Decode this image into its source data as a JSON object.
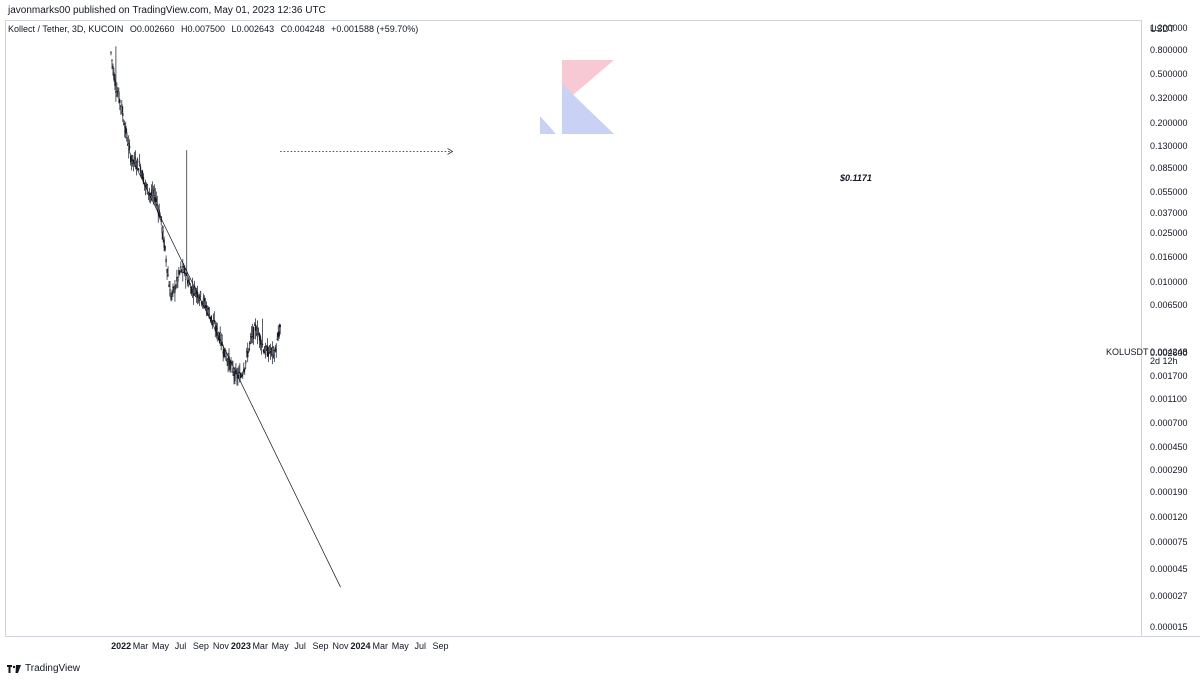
{
  "header": {
    "published": "javonmarks00 published on TradingView.com, May 01, 2023 12:36 UTC",
    "symbol": "Kollect / Tether, 3D, KUCOIN",
    "open": "O0.002660",
    "high": "H0.007500",
    "low": "L0.002643",
    "close": "C0.004248",
    "change": "+0.001588 (+59.70%)"
  },
  "price_axis": {
    "currency": "USDT",
    "labels": [
      "1.200000",
      "0.800000",
      "0.500000",
      "0.320000",
      "0.200000",
      "0.130000",
      "0.085000",
      "0.055000",
      "0.037000",
      "0.025000",
      "0.016000",
      "0.010000",
      "0.006500",
      "0.002600",
      "0.001700",
      "0.001100",
      "0.000700",
      "0.000450",
      "0.000290",
      "0.000190",
      "0.000120",
      "0.000075",
      "0.000045",
      "0.000027",
      "0.000015"
    ]
  },
  "time_axis": {
    "labels": [
      {
        "text": "2022",
        "year": true
      },
      {
        "text": "Mar",
        "year": false
      },
      {
        "text": "May",
        "year": false
      },
      {
        "text": "Jul",
        "year": false
      },
      {
        "text": "Sep",
        "year": false
      },
      {
        "text": "Nov",
        "year": false
      },
      {
        "text": "2023",
        "year": true
      },
      {
        "text": "Mar",
        "year": false
      },
      {
        "text": "May",
        "year": false
      },
      {
        "text": "Jul",
        "year": false
      },
      {
        "text": "Sep",
        "year": false
      },
      {
        "text": "Nov",
        "year": false
      },
      {
        "text": "2024",
        "year": true
      },
      {
        "text": "Mar",
        "year": false
      },
      {
        "text": "May",
        "year": false
      },
      {
        "text": "Jul",
        "year": false
      },
      {
        "text": "Sep",
        "year": false
      }
    ]
  },
  "current": {
    "symbol": "KOLUSDT",
    "price": "0.004248",
    "countdown": "2d 12h"
  },
  "annotation": {
    "target_label": "$0.1171",
    "target_value": 0.1171
  },
  "footer": {
    "brand": "TradingView"
  },
  "colors": {
    "candle": "#131722",
    "trendline": "#131722",
    "axis_border": "#d1d4dc",
    "watermark_pink": "#f7c9d4",
    "watermark_blue": "#c9d2f5"
  },
  "chart_data": {
    "type": "candlestick",
    "scale": "log",
    "ylim": [
      1.2e-05,
      1.4
    ],
    "xlim": [
      "2021-11-25",
      "2024-10-15"
    ],
    "candles_approx": [
      {
        "date": "2021-12-01",
        "close": 0.75
      },
      {
        "date": "2021-12-15",
        "close": 0.4
      },
      {
        "date": "2022-01-01",
        "close": 0.28
      },
      {
        "date": "2022-01-15",
        "close": 0.17
      },
      {
        "date": "2022-02-01",
        "close": 0.1
      },
      {
        "date": "2022-02-15",
        "close": 0.095
      },
      {
        "date": "2022-03-01",
        "close": 0.088
      },
      {
        "date": "2022-03-15",
        "close": 0.062
      },
      {
        "date": "2022-04-01",
        "close": 0.052
      },
      {
        "date": "2022-04-15",
        "close": 0.05
      },
      {
        "date": "2022-05-01",
        "close": 0.034
      },
      {
        "date": "2022-05-15",
        "close": 0.018
      },
      {
        "date": "2022-06-01",
        "close": 0.0075
      },
      {
        "date": "2022-06-15",
        "close": 0.009
      },
      {
        "date": "2022-07-01",
        "close": 0.0125
      },
      {
        "date": "2022-07-15",
        "close": 0.012
      },
      {
        "date": "2022-08-01",
        "close": 0.009
      },
      {
        "date": "2022-08-15",
        "close": 0.0085
      },
      {
        "date": "2022-09-01",
        "close": 0.0075
      },
      {
        "date": "2022-09-15",
        "close": 0.0065
      },
      {
        "date": "2022-10-01",
        "close": 0.0052
      },
      {
        "date": "2022-10-15",
        "close": 0.0042
      },
      {
        "date": "2022-11-01",
        "close": 0.0034
      },
      {
        "date": "2022-11-15",
        "close": 0.0025
      },
      {
        "date": "2022-12-01",
        "close": 0.0021
      },
      {
        "date": "2022-12-15",
        "close": 0.0017
      },
      {
        "date": "2023-01-01",
        "close": 0.0017
      },
      {
        "date": "2023-01-15",
        "close": 0.0022
      },
      {
        "date": "2023-02-01",
        "close": 0.0034
      },
      {
        "date": "2023-02-15",
        "close": 0.0042
      },
      {
        "date": "2023-03-01",
        "close": 0.0035
      },
      {
        "date": "2023-03-15",
        "close": 0.0027
      },
      {
        "date": "2023-04-01",
        "close": 0.0027
      },
      {
        "date": "2023-04-15",
        "close": 0.0026
      },
      {
        "date": "2023-05-01",
        "close": 0.004248
      }
    ]
  }
}
